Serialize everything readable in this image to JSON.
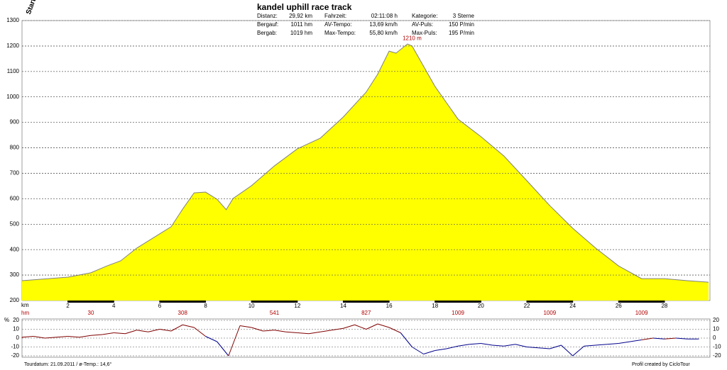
{
  "chart_data": {
    "type": "area",
    "title": "kandel uphill race track",
    "start_label": "Start",
    "stats": [
      [
        "Distanz:",
        "29,92 km",
        "Fahrzeit:",
        "02:11:08 h",
        "Kategorie:",
        "3 Sterne"
      ],
      [
        "Bergauf:",
        "1011 hm",
        "AV-Tempo:",
        "13,69 km/h",
        "AV-Puls:",
        "150 P/min"
      ],
      [
        "Bergab:",
        "1019 hm",
        "Max-Tempo:",
        "55,80 km/h",
        "Max-Puls:",
        "195 P/min"
      ]
    ],
    "x": [
      0,
      2,
      3,
      3.7,
      4.3,
      5,
      6,
      6.5,
      7,
      7.5,
      8,
      8.5,
      8.9,
      9.2,
      10,
      11,
      12,
      13,
      14,
      15,
      15.5,
      16,
      16.3,
      16.8,
      17,
      18,
      19,
      20,
      21,
      22,
      23,
      24,
      25,
      26,
      27,
      28,
      29,
      29.92
    ],
    "values": [
      278,
      292,
      309,
      336,
      356,
      406,
      462,
      490,
      559,
      623,
      626,
      598,
      557,
      601,
      651,
      729,
      796,
      838,
      921,
      1019,
      1089,
      1180,
      1172,
      1208,
      1200,
      1041,
      913,
      844,
      768,
      671,
      573,
      484,
      406,
      336,
      286,
      286,
      278,
      272
    ],
    "color": "#ffff00",
    "line_color": "#808080",
    "peak": {
      "x": 17,
      "value": 1210,
      "label": "1210 m"
    },
    "xlabel": "km",
    "xlim": [
      0,
      29.92
    ],
    "xticks": [
      2,
      4,
      6,
      8,
      10,
      12,
      14,
      16,
      18,
      20,
      22,
      24,
      26,
      28
    ],
    "ylim": [
      200,
      1300
    ],
    "yticks": [
      200,
      300,
      400,
      500,
      600,
      700,
      800,
      900,
      1000,
      1100,
      1200,
      1300
    ],
    "grid": true,
    "hm": {
      "label": "hm",
      "x": [
        3,
        7,
        11,
        15,
        19,
        23,
        27
      ],
      "values": [
        30,
        308,
        541,
        827,
        1009,
        1009,
        1009
      ]
    },
    "gradient": {
      "label": "%",
      "ylim": [
        -20,
        20
      ],
      "yticks": [
        20,
        10,
        0,
        -10,
        -20
      ],
      "up_color": "#800000",
      "down_color": "#00008b",
      "x": [
        0,
        0.5,
        1,
        1.5,
        2,
        2.5,
        3,
        3.5,
        4,
        4.5,
        5,
        5.5,
        6,
        6.5,
        7,
        7.5,
        8,
        8.5,
        9,
        9.5,
        10,
        10.5,
        11,
        11.5,
        12,
        12.5,
        13,
        13.5,
        14,
        14.5,
        15,
        15.5,
        16,
        16.5,
        17,
        17.5,
        18,
        18.5,
        19,
        19.5,
        20,
        20.5,
        21,
        21.5,
        22,
        22.5,
        23,
        23.5,
        24,
        24.5,
        25,
        25.5,
        26,
        26.5,
        27,
        27.5,
        28,
        28.5,
        29,
        29.5
      ],
      "values": [
        1,
        2,
        0,
        1,
        2,
        1,
        3,
        4,
        6,
        5,
        9,
        7,
        10,
        8,
        15,
        12,
        2,
        -4,
        -20,
        14,
        12,
        8,
        9,
        7,
        6,
        5,
        7,
        9,
        11,
        15,
        10,
        16,
        12,
        6,
        -10,
        -18,
        -14,
        -12,
        -9,
        -7,
        -6,
        -8,
        -9,
        -7,
        -10,
        -11,
        -12,
        -8,
        -20,
        -9,
        -8,
        -7,
        -6,
        -4,
        -2,
        0,
        -1,
        0,
        -1,
        -1
      ]
    },
    "footer_left": "Tourdatum: 21.09.2011  /  ø-Temp.: 14,6°",
    "footer_right": "Profil created by CicloTour"
  }
}
